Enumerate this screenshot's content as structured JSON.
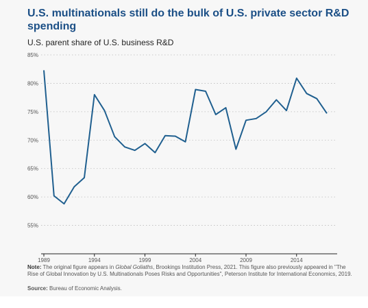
{
  "header": {
    "title": "U.S. multinationals still do the bulk of U.S. private sector R&D spending",
    "subtitle": "U.S. parent share of U.S. business R&D"
  },
  "footer": {
    "note_label": "Note:",
    "note_text_1": "The original figure appears in",
    "note_italic": "Global Goliaths",
    "note_text_2": ", Brookings Institution Press, 2021. This figure also previously appeared in \"The Rise of Global Innovation by U.S. Multinationals Poses Risks and Opportunities\", Peterson Institute for International Economics, 2019.",
    "source_label": "Source:",
    "source_text": "Bureau of Economic Analysis."
  },
  "chart_data": {
    "type": "line",
    "title": "U.S. multinationals still do the bulk of U.S. private sector R&D spending",
    "subtitle": "U.S. parent share of U.S. business R&D",
    "x": [
      1989,
      1990,
      1991,
      1992,
      1993,
      1994,
      1995,
      1996,
      1997,
      1998,
      1999,
      2000,
      2001,
      2002,
      2003,
      2004,
      2005,
      2006,
      2007,
      2008,
      2009,
      2010,
      2011,
      2012,
      2013,
      2014,
      2015,
      2016,
      2017
    ],
    "series": [
      {
        "values": [
          82.3,
          60.2,
          58.8,
          61.8,
          63.4,
          78.0,
          75.2,
          70.6,
          68.8,
          68.2,
          69.4,
          67.8,
          70.8,
          70.7,
          69.7,
          78.9,
          78.6,
          74.5,
          75.7,
          68.4,
          73.5,
          73.8,
          75.0,
          77.1,
          75.2,
          80.9,
          78.2,
          77.3,
          74.7
        ]
      }
    ],
    "x_ticks": [
      1989,
      1994,
      1999,
      2004,
      2009,
      2014
    ],
    "y_ticks": [
      55,
      60,
      65,
      70,
      75,
      80,
      85
    ],
    "y_tick_labels": [
      "55%",
      "60%",
      "65%",
      "70%",
      "75%",
      "80%",
      "85%"
    ],
    "xlim": [
      1989,
      2017
    ],
    "ylim": [
      50,
      85
    ],
    "grid": true,
    "line_color": "#1f5f8f"
  }
}
